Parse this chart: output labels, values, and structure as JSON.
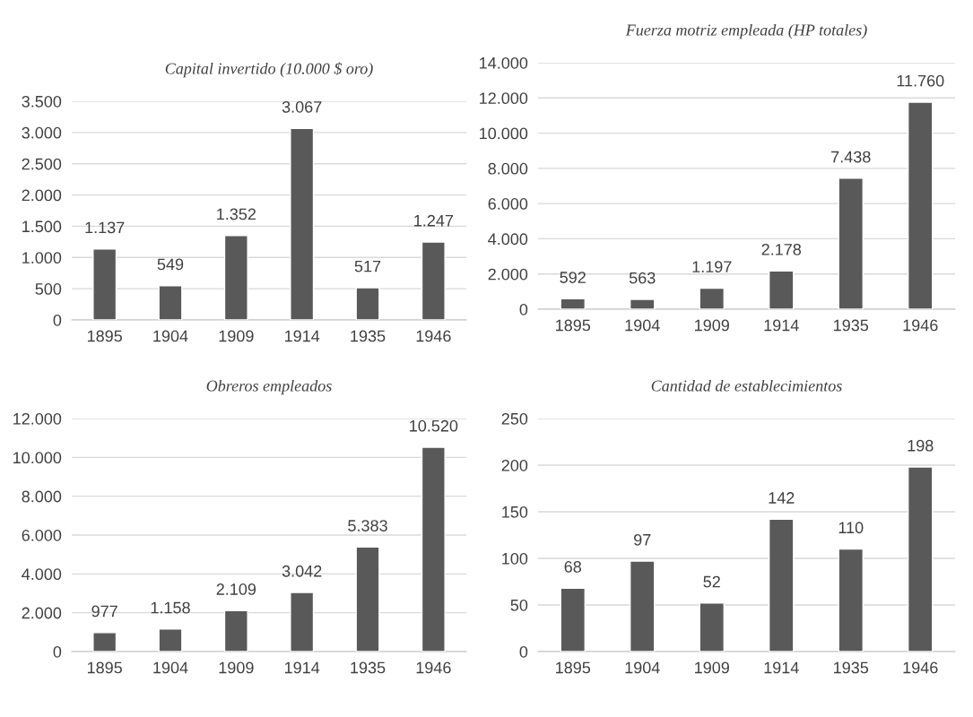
{
  "chart_data": [
    {
      "type": "bar",
      "title": "Capital invertido (10.000 $ oro)",
      "categories": [
        "1895",
        "1904",
        "1909",
        "1914",
        "1935",
        "1946"
      ],
      "values": [
        1137,
        549,
        1352,
        3067,
        517,
        1247
      ],
      "value_labels": [
        "1.137",
        "549",
        "1.352",
        "3.067",
        "517",
        "1.247"
      ],
      "color": "#595959",
      "ylim": [
        0,
        3500
      ],
      "yticks": [
        {
          "value": 0,
          "label": "0"
        },
        {
          "value": 500,
          "label": "500"
        },
        {
          "value": 1000,
          "label": "1.000"
        },
        {
          "value": 1500,
          "label": "1.500"
        },
        {
          "value": 2000,
          "label": "2.000"
        },
        {
          "value": 2500,
          "label": "2.500"
        },
        {
          "value": 3000,
          "label": "3.000"
        },
        {
          "value": 3500,
          "label": "3.500"
        }
      ],
      "grid": "y",
      "legend": false
    },
    {
      "type": "bar",
      "title": "Fuerza motriz empleada (HP totales)",
      "categories": [
        "1895",
        "1904",
        "1909",
        "1914",
        "1935",
        "1946"
      ],
      "values": [
        592,
        563,
        1197,
        2178,
        7438,
        11760
      ],
      "value_labels": [
        "592",
        "563",
        "1.197",
        "2.178",
        "7.438",
        "11.760"
      ],
      "color": "#595959",
      "ylim": [
        0,
        14000
      ],
      "yticks": [
        {
          "value": 0,
          "label": "0"
        },
        {
          "value": 2000,
          "label": "2.000"
        },
        {
          "value": 4000,
          "label": "4.000"
        },
        {
          "value": 6000,
          "label": "6.000"
        },
        {
          "value": 8000,
          "label": "8.000"
        },
        {
          "value": 10000,
          "label": "10.000"
        },
        {
          "value": 12000,
          "label": "12.000"
        },
        {
          "value": 14000,
          "label": "14.000"
        }
      ],
      "grid": "y",
      "legend": false
    },
    {
      "type": "bar",
      "title": "Obreros empleados",
      "categories": [
        "1895",
        "1904",
        "1909",
        "1914",
        "1935",
        "1946"
      ],
      "values": [
        977,
        1158,
        2109,
        3042,
        5383,
        10520
      ],
      "value_labels": [
        "977",
        "1.158",
        "2.109",
        "3.042",
        "5.383",
        "10.520"
      ],
      "color": "#595959",
      "ylim": [
        0,
        12000
      ],
      "yticks": [
        {
          "value": 0,
          "label": "0"
        },
        {
          "value": 2000,
          "label": "2.000"
        },
        {
          "value": 4000,
          "label": "4.000"
        },
        {
          "value": 6000,
          "label": "6.000"
        },
        {
          "value": 8000,
          "label": "8.000"
        },
        {
          "value": 10000,
          "label": "10.000"
        },
        {
          "value": 12000,
          "label": "12.000"
        }
      ],
      "grid": "y",
      "legend": false
    },
    {
      "type": "bar",
      "title": "Cantidad de establecimientos",
      "categories": [
        "1895",
        "1904",
        "1909",
        "1914",
        "1935",
        "1946"
      ],
      "values": [
        68,
        97,
        52,
        142,
        110,
        198
      ],
      "value_labels": [
        "68",
        "97",
        "52",
        "142",
        "110",
        "198"
      ],
      "color": "#595959",
      "ylim": [
        0,
        250
      ],
      "yticks": [
        0,
        50,
        100,
        150,
        200,
        250
      ],
      "grid": "y",
      "legend": false
    }
  ]
}
